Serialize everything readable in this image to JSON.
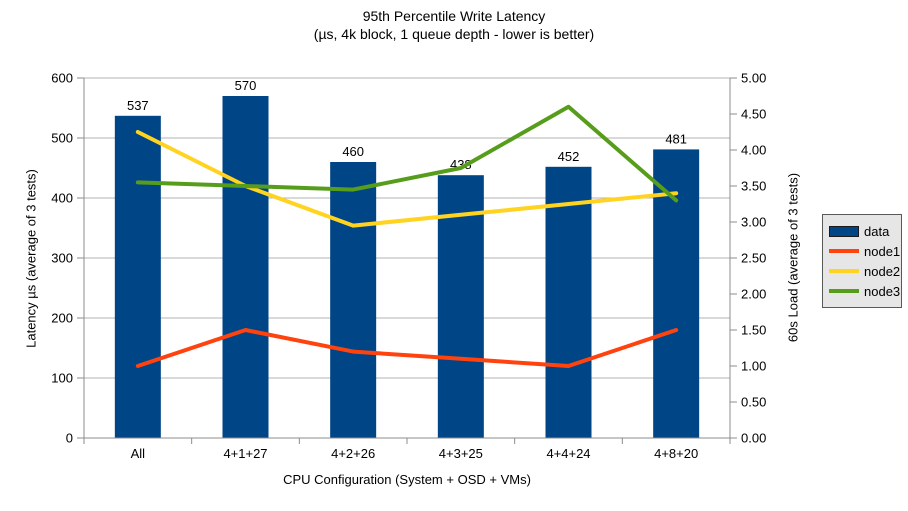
{
  "title": {
    "line1": "95th Percentile Write Latency",
    "line2": "(µs, 4k block, 1 queue depth - lower is better)"
  },
  "chart_data": {
    "type": "bar",
    "subtype": "bar+line combo (bars on left axis, lines on right axis)",
    "categories": [
      "All",
      "4+1+27",
      "4+2+26",
      "4+3+25",
      "4+4+24",
      "4+8+20"
    ],
    "series": [
      {
        "name": "data",
        "type": "bar",
        "axis": "left",
        "color": "#004586",
        "values": [
          537,
          570,
          460,
          438,
          452,
          481
        ],
        "data_labels": [
          "537",
          "570",
          "460",
          "438",
          "452",
          "481"
        ]
      },
      {
        "name": "node1",
        "type": "line",
        "axis": "right",
        "color": "#ff420e",
        "values": [
          1.0,
          1.5,
          1.2,
          1.1,
          1.0,
          1.5
        ]
      },
      {
        "name": "node2",
        "type": "line",
        "axis": "right",
        "color": "#ffd320",
        "values": [
          4.25,
          3.5,
          2.95,
          3.1,
          3.25,
          3.4
        ]
      },
      {
        "name": "node3",
        "type": "line",
        "axis": "right",
        "color": "#579d1c",
        "values": [
          3.55,
          3.5,
          3.45,
          3.75,
          4.6,
          3.3
        ]
      }
    ],
    "left_axis": {
      "title": "Latency µs (average of 3 tests)",
      "min": 0,
      "max": 600,
      "tick_step": 100,
      "tick_labels": [
        "0",
        "100",
        "200",
        "300",
        "400",
        "500",
        "600"
      ]
    },
    "right_axis": {
      "title": "60s Load (average of 3 tests)",
      "min": 0,
      "max": 5,
      "tick_step": 0.5,
      "tick_labels": [
        "0.00",
        "0.50",
        "1.00",
        "1.50",
        "2.00",
        "2.50",
        "3.00",
        "3.50",
        "4.00",
        "4.50",
        "5.00"
      ]
    },
    "x_axis": {
      "title": "CPU Configuration (System + OSD + VMs)"
    },
    "legend": {
      "position": "right",
      "entries": [
        {
          "label": "data",
          "color": "#004586",
          "marker": "bar"
        },
        {
          "label": "node1",
          "color": "#ff420e",
          "marker": "line"
        },
        {
          "label": "node2",
          "color": "#ffd320",
          "marker": "line"
        },
        {
          "label": "node3",
          "color": "#579d1c",
          "marker": "line"
        }
      ]
    },
    "grid": {
      "horizontal": true,
      "vertical": false,
      "color": "#b3b3b3"
    }
  },
  "colors": {
    "background": "#ffffff",
    "axis": "#8c8c8c",
    "gridline": "#b3b3b3",
    "text": "#000000",
    "legend_background": "#e6e6e6",
    "legend_border": "#595959"
  }
}
